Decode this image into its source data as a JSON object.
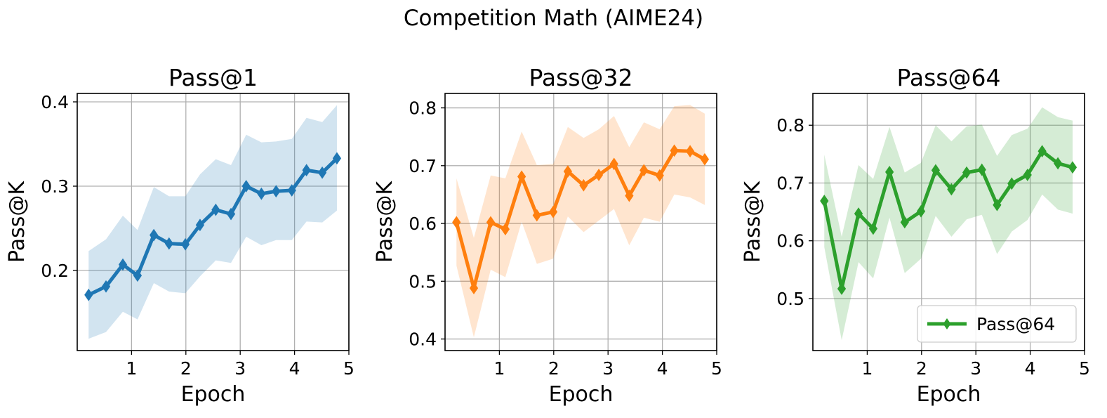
{
  "figure": {
    "title": "Competition Math (AIME24)"
  },
  "chart_data": [
    {
      "type": "line",
      "title": "Pass@1",
      "xlabel": "Epoch",
      "ylabel": "Pass@K",
      "xlim": [
        0.0,
        5.0
      ],
      "ylim": [
        0.105,
        0.41
      ],
      "xticks": [
        1,
        2,
        3,
        4,
        5
      ],
      "yticks": [
        0.2,
        0.3,
        0.4
      ],
      "ytick_labels": [
        "0.2",
        "0.3",
        "0.4"
      ],
      "grid": true,
      "legend": null,
      "color": "#1f77b4",
      "band_color": "#1f77b4",
      "x": [
        0.21,
        0.53,
        0.84,
        1.11,
        1.41,
        1.69,
        1.99,
        2.26,
        2.55,
        2.83,
        3.11,
        3.39,
        3.66,
        3.95,
        4.22,
        4.51,
        4.78
      ],
      "series": [
        {
          "values": [
            0.171,
            0.181,
            0.207,
            0.194,
            0.242,
            0.232,
            0.231,
            0.254,
            0.272,
            0.267,
            0.3,
            0.291,
            0.294,
            0.295,
            0.319,
            0.316,
            0.333
          ],
          "lower": [
            0.119,
            0.127,
            0.151,
            0.142,
            0.185,
            0.175,
            0.173,
            0.193,
            0.212,
            0.209,
            0.24,
            0.23,
            0.236,
            0.236,
            0.258,
            0.257,
            0.271
          ],
          "upper": [
            0.223,
            0.237,
            0.265,
            0.248,
            0.299,
            0.288,
            0.288,
            0.314,
            0.332,
            0.325,
            0.361,
            0.352,
            0.353,
            0.356,
            0.381,
            0.376,
            0.396
          ]
        }
      ]
    },
    {
      "type": "line",
      "title": "Pass@32",
      "xlabel": "Epoch",
      "ylabel": "Pass@K",
      "xlim": [
        0.0,
        5.0
      ],
      "ylim": [
        0.38,
        0.825
      ],
      "xticks": [
        1,
        2,
        3,
        4,
        5
      ],
      "yticks": [
        0.4,
        0.5,
        0.6,
        0.7,
        0.8
      ],
      "ytick_labels": [
        "0.4",
        "0.5",
        "0.6",
        "0.7",
        "0.8"
      ],
      "grid": true,
      "legend": null,
      "color": "#ff7f0e",
      "band_color": "#ff7f0e",
      "x": [
        0.21,
        0.53,
        0.84,
        1.11,
        1.41,
        1.69,
        1.99,
        2.26,
        2.55,
        2.83,
        3.11,
        3.39,
        3.66,
        3.95,
        4.22,
        4.51,
        4.78
      ],
      "series": [
        {
          "values": [
            0.602,
            0.488,
            0.602,
            0.59,
            0.681,
            0.614,
            0.62,
            0.69,
            0.666,
            0.684,
            0.703,
            0.648,
            0.692,
            0.683,
            0.726,
            0.725,
            0.711
          ],
          "lower": [
            0.527,
            0.403,
            0.52,
            0.507,
            0.603,
            0.53,
            0.539,
            0.612,
            0.585,
            0.605,
            0.625,
            0.562,
            0.61,
            0.603,
            0.65,
            0.645,
            0.632
          ],
          "upper": [
            0.678,
            0.575,
            0.683,
            0.678,
            0.759,
            0.701,
            0.703,
            0.767,
            0.748,
            0.763,
            0.786,
            0.732,
            0.775,
            0.763,
            0.803,
            0.805,
            0.79
          ]
        }
      ]
    },
    {
      "type": "line",
      "title": "Pass@64",
      "xlabel": "Epoch",
      "ylabel": "Pass@K",
      "xlim": [
        0.0,
        5.0
      ],
      "ylim": [
        0.41,
        0.855
      ],
      "xticks": [
        1,
        2,
        3,
        4,
        5
      ],
      "yticks": [
        0.5,
        0.6,
        0.7,
        0.8
      ],
      "ytick_labels": [
        "0.5",
        "0.6",
        "0.7",
        "0.8"
      ],
      "grid": true,
      "legend": "lower right",
      "color": "#2ca02c",
      "band_color": "#2ca02c",
      "x": [
        0.21,
        0.53,
        0.84,
        1.11,
        1.41,
        1.69,
        1.99,
        2.26,
        2.55,
        2.83,
        3.11,
        3.39,
        3.66,
        3.95,
        4.22,
        4.51,
        4.78
      ],
      "series": [
        {
          "name": "Pass@64",
          "values": [
            0.669,
            0.517,
            0.647,
            0.621,
            0.719,
            0.632,
            0.651,
            0.722,
            0.689,
            0.718,
            0.723,
            0.662,
            0.699,
            0.714,
            0.755,
            0.734,
            0.727
          ],
          "lower": [
            0.589,
            0.428,
            0.563,
            0.535,
            0.64,
            0.544,
            0.569,
            0.643,
            0.607,
            0.637,
            0.645,
            0.577,
            0.616,
            0.636,
            0.68,
            0.654,
            0.647
          ],
          "upper": [
            0.749,
            0.607,
            0.731,
            0.707,
            0.797,
            0.718,
            0.735,
            0.8,
            0.772,
            0.798,
            0.801,
            0.747,
            0.783,
            0.794,
            0.831,
            0.814,
            0.808
          ]
        }
      ]
    }
  ]
}
